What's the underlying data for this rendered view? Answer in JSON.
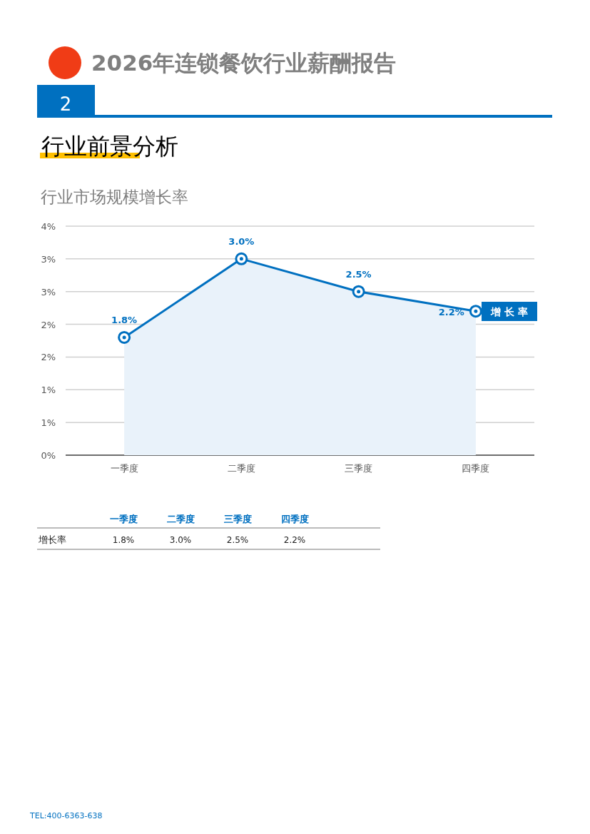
{
  "chart_data": {
    "type": "area",
    "title": "2026年连锁餐饮行业薪酬报告",
    "subtitle": "行业市场规模增长率",
    "annotations": [
      "2",
      "行业前景分析",
      "TEL:400-6363-638"
    ],
    "categories": [
      "一季度",
      "二季度",
      "三季度",
      "四季度"
    ],
    "series": [
      {
        "name": "增长率",
        "color": "#0070c0",
        "values": [
          1.8,
          3.0,
          2.5,
          2.2
        ],
        "value_labels": [
          "1.8%",
          "3.0%",
          "2.5%",
          "2.2%"
        ]
      }
    ],
    "ylim": [
      0,
      3.5
    ],
    "yticks": [
      {
        "value": 0,
        "label": "0%"
      },
      {
        "value": 0.5,
        "label": "1%"
      },
      {
        "value": 1,
        "label": "1%"
      },
      {
        "value": 1.5,
        "label": "2%"
      },
      {
        "value": 2,
        "label": "2%"
      },
      {
        "value": 2.5,
        "label": "3%"
      },
      {
        "value": 3,
        "label": "3%"
      },
      {
        "value": 3.5,
        "label": "4%"
      }
    ],
    "grid": "y",
    "legend": "right",
    "marker": "circle",
    "line_style": "solid"
  }
}
